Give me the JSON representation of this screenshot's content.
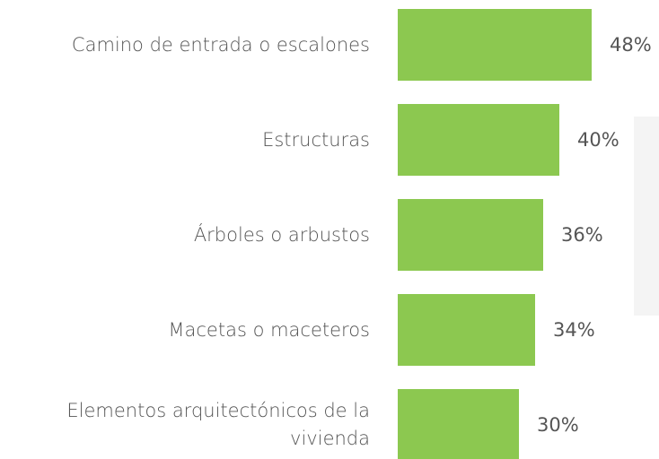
{
  "chart_data": {
    "type": "bar",
    "orientation": "horizontal",
    "categories": [
      "Camino de entrada o escalones",
      "Estructuras",
      "Árboles o arbustos",
      "Macetas o maceteros",
      "Elementos arquitectónicos de la vivienda"
    ],
    "values": [
      48,
      40,
      36,
      34,
      30
    ],
    "value_labels": [
      "48%",
      "40%",
      "36%",
      "34%",
      "30%"
    ],
    "color": "#8cc850"
  }
}
